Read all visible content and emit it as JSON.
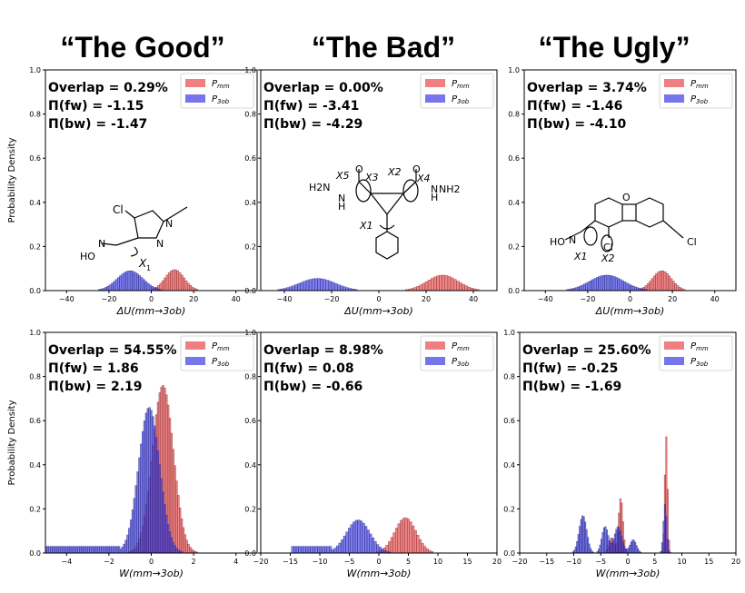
{
  "titles": [
    "“The Good”",
    "“The Bad”",
    "“The Ugly”"
  ],
  "colors": {
    "p_mm": "#e8484a",
    "p_3ob": "#3b3be6",
    "p_mm_edge": "#7a1f1f",
    "p_3ob_edge": "#1a1a6e"
  },
  "ylabel": "Probability Density",
  "legend": {
    "p_mm": "P",
    "p_mm_sub": "mm",
    "p_3ob": "P",
    "p_3ob_sub": "3ob"
  },
  "molecule_labels": {
    "good": [
      "Cl",
      "N",
      "N",
      "N",
      "HO",
      "X",
      "1"
    ],
    "bad": [
      "H2N",
      "N",
      "H",
      "X5",
      "X3",
      "O",
      "X2",
      "X4",
      "O",
      "N",
      "H",
      "NH2",
      "X1"
    ],
    "ugly": [
      "O",
      "Cl",
      "HO",
      "N",
      "X1",
      "X2",
      "Cl"
    ]
  },
  "chart_data": [
    {
      "id": "good-du",
      "type": "bar",
      "xlabel": "ΔU(mm→3ob)",
      "ylabel": "Probability Density",
      "xlim": [
        -50,
        50
      ],
      "ylim": [
        0,
        1.0
      ],
      "xticks": [
        -40,
        -20,
        0,
        20,
        40
      ],
      "yticks": [
        0.0,
        0.2,
        0.4,
        0.6,
        0.8,
        1.0
      ],
      "annotations": [
        "Overlap = 0.29%",
        "Π(fw) = -1.15",
        "Π(bw) = -1.47"
      ],
      "series": [
        {
          "name": "Pmm",
          "dist": "gauss",
          "mu": 11,
          "sigma": 4.5,
          "peak": 0.095
        },
        {
          "name": "P3ob",
          "dist": "gauss",
          "mu": -10,
          "sigma": 6,
          "peak": 0.09
        }
      ],
      "binw": 1
    },
    {
      "id": "bad-du",
      "type": "bar",
      "xlabel": "ΔU(mm→3ob)",
      "ylabel": "",
      "xlim": [
        -50,
        50
      ],
      "ylim": [
        0,
        1.0
      ],
      "xticks": [
        -40,
        -20,
        0,
        20,
        40
      ],
      "yticks": [
        0.0,
        0.2,
        0.4,
        0.6,
        0.8,
        1.0
      ],
      "annotations": [
        "Overlap = 0.00%",
        "Π(fw) = -3.41",
        "Π(bw) = -4.29"
      ],
      "series": [
        {
          "name": "Pmm",
          "dist": "gauss",
          "mu": 27,
          "sigma": 6.5,
          "peak": 0.07
        },
        {
          "name": "P3ob",
          "dist": "gauss",
          "mu": -26,
          "sigma": 7.5,
          "peak": 0.055
        }
      ],
      "binw": 1.2
    },
    {
      "id": "ugly-du",
      "type": "bar",
      "xlabel": "ΔU(mm→3ob)",
      "ylabel": "",
      "xlim": [
        -50,
        50
      ],
      "ylim": [
        0,
        1.0
      ],
      "xticks": [
        -40,
        -20,
        0,
        20,
        40
      ],
      "yticks": [
        0.0,
        0.2,
        0.4,
        0.6,
        0.8,
        1.0
      ],
      "annotations": [
        "Overlap = 3.74%",
        "Π(fw) = -1.46",
        "Π(bw) = -4.10"
      ],
      "series": [
        {
          "name": "Pmm",
          "dist": "gauss",
          "mu": 15,
          "sigma": 4.5,
          "peak": 0.09
        },
        {
          "name": "P3ob",
          "dist": "gauss",
          "mu": -11,
          "sigma": 8,
          "peak": 0.07
        }
      ],
      "binw": 1
    },
    {
      "id": "good-w",
      "type": "bar",
      "xlabel": "W(mm→3ob)",
      "ylabel": "Probability Density",
      "xlim": [
        -5,
        5
      ],
      "ylim": [
        0,
        1.0
      ],
      "xticks": [
        -4,
        -2,
        0,
        2,
        4
      ],
      "yticks": [
        0.0,
        0.2,
        0.4,
        0.6,
        0.8,
        1.0
      ],
      "annotations": [
        "Overlap = 54.55%",
        "Π(fw) = 1.86",
        "Π(bw) = 2.19"
      ],
      "series": [
        {
          "name": "Pmm",
          "dist": "gauss",
          "mu": 0.55,
          "sigma": 0.5,
          "peak": 0.76
        },
        {
          "name": "P3ob",
          "dist": "gauss",
          "mu": -0.1,
          "sigma": 0.5,
          "peak": 0.66,
          "tail": {
            "from": -5,
            "to": -1.5,
            "level": 0.03
          }
        }
      ],
      "binw": 0.08
    },
    {
      "id": "bad-w",
      "type": "bar",
      "xlabel": "W(mm→3ob)",
      "ylabel": "",
      "xlim": [
        -20,
        20
      ],
      "ylim": [
        0,
        1.0
      ],
      "xticks": [
        -20,
        -15,
        -10,
        -5,
        0,
        5,
        10,
        15,
        20
      ],
      "yticks": [
        0.0,
        0.2,
        0.4,
        0.6,
        0.8,
        1.0
      ],
      "annotations": [
        "Overlap = 8.98%",
        "Π(fw) = 0.08",
        "Π(bw) = -0.66"
      ],
      "series": [
        {
          "name": "Pmm",
          "dist": "gauss",
          "mu": 4.5,
          "sigma": 1.8,
          "peak": 0.16
        },
        {
          "name": "P3ob",
          "dist": "gauss",
          "mu": -3.5,
          "sigma": 2.0,
          "peak": 0.15,
          "tail": {
            "from": -15,
            "to": -8,
            "level": 0.03
          }
        }
      ],
      "binw": 0.4
    },
    {
      "id": "ugly-w",
      "type": "bar",
      "xlabel": "W(mm→3ob)",
      "ylabel": "",
      "xlim": [
        -20,
        20
      ],
      "ylim": [
        0,
        1.0
      ],
      "xticks": [
        -20,
        -15,
        -10,
        -5,
        0,
        5,
        10,
        15,
        20
      ],
      "yticks": [
        0.0,
        0.2,
        0.4,
        0.6,
        0.8,
        1.0
      ],
      "annotations": [
        "Overlap = 25.60%",
        "Π(fw) = -0.25",
        "Π(bw) = -1.69"
      ],
      "series": [
        {
          "name": "Pmm",
          "dist": "multi",
          "comps": [
            {
              "mu": -1.3,
              "sigma": 0.4,
              "peak": 0.25
            },
            {
              "mu": -3.0,
              "sigma": 0.5,
              "peak": 0.07
            },
            {
              "mu": 7.1,
              "sigma": 0.25,
              "peak": 0.53
            }
          ]
        },
        {
          "name": "P3ob",
          "dist": "multi",
          "comps": [
            {
              "mu": -8.3,
              "sigma": 0.7,
              "peak": 0.17
            },
            {
              "mu": -4.2,
              "sigma": 0.6,
              "peak": 0.12
            },
            {
              "mu": -1.8,
              "sigma": 0.7,
              "peak": 0.12
            },
            {
              "mu": 1.0,
              "sigma": 0.6,
              "peak": 0.06
            },
            {
              "mu": 6.9,
              "sigma": 0.3,
              "peak": 0.22
            }
          ]
        }
      ],
      "binw": 0.25
    }
  ]
}
